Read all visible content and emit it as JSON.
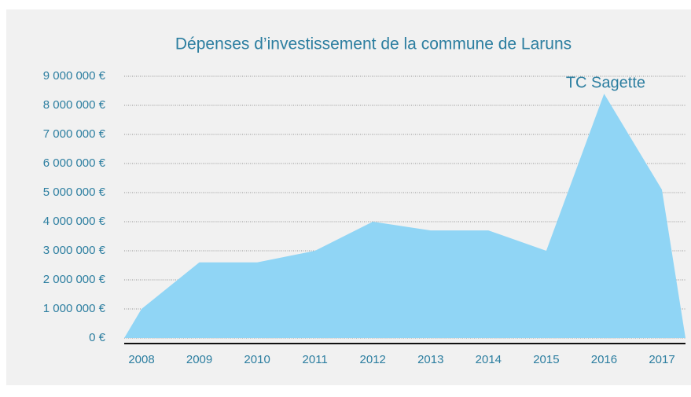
{
  "chart_data": {
    "type": "area",
    "title": "Dépenses d’investissement de la commune de Laruns",
    "categories": [
      "2008",
      "2009",
      "2010",
      "2011",
      "2012",
      "2013",
      "2014",
      "2015",
      "2016",
      "2017"
    ],
    "values": [
      1000000,
      2600000,
      2600000,
      3000000,
      4000000,
      3700000,
      3700000,
      3000000,
      8400000,
      5100000
    ],
    "color": "#90d5f5",
    "ylim": [
      0,
      9000000
    ],
    "yticks": [
      {
        "value": 0,
        "label": "0 €"
      },
      {
        "value": 1000000,
        "label": "1 000 000 €"
      },
      {
        "value": 2000000,
        "label": "2 000 000 €"
      },
      {
        "value": 3000000,
        "label": "3 000 000 €"
      },
      {
        "value": 4000000,
        "label": "4 000 000 €"
      },
      {
        "value": 5000000,
        "label": "5 000 000 €"
      },
      {
        "value": 6000000,
        "label": "6 000 000 €"
      },
      {
        "value": 7000000,
        "label": "7 000 000 €"
      },
      {
        "value": 8000000,
        "label": "8 000 000 €"
      },
      {
        "value": 9000000,
        "label": "9 000 000 €"
      }
    ],
    "grid": true,
    "annotation": {
      "text": "TC Sagette",
      "category": 8
    }
  }
}
